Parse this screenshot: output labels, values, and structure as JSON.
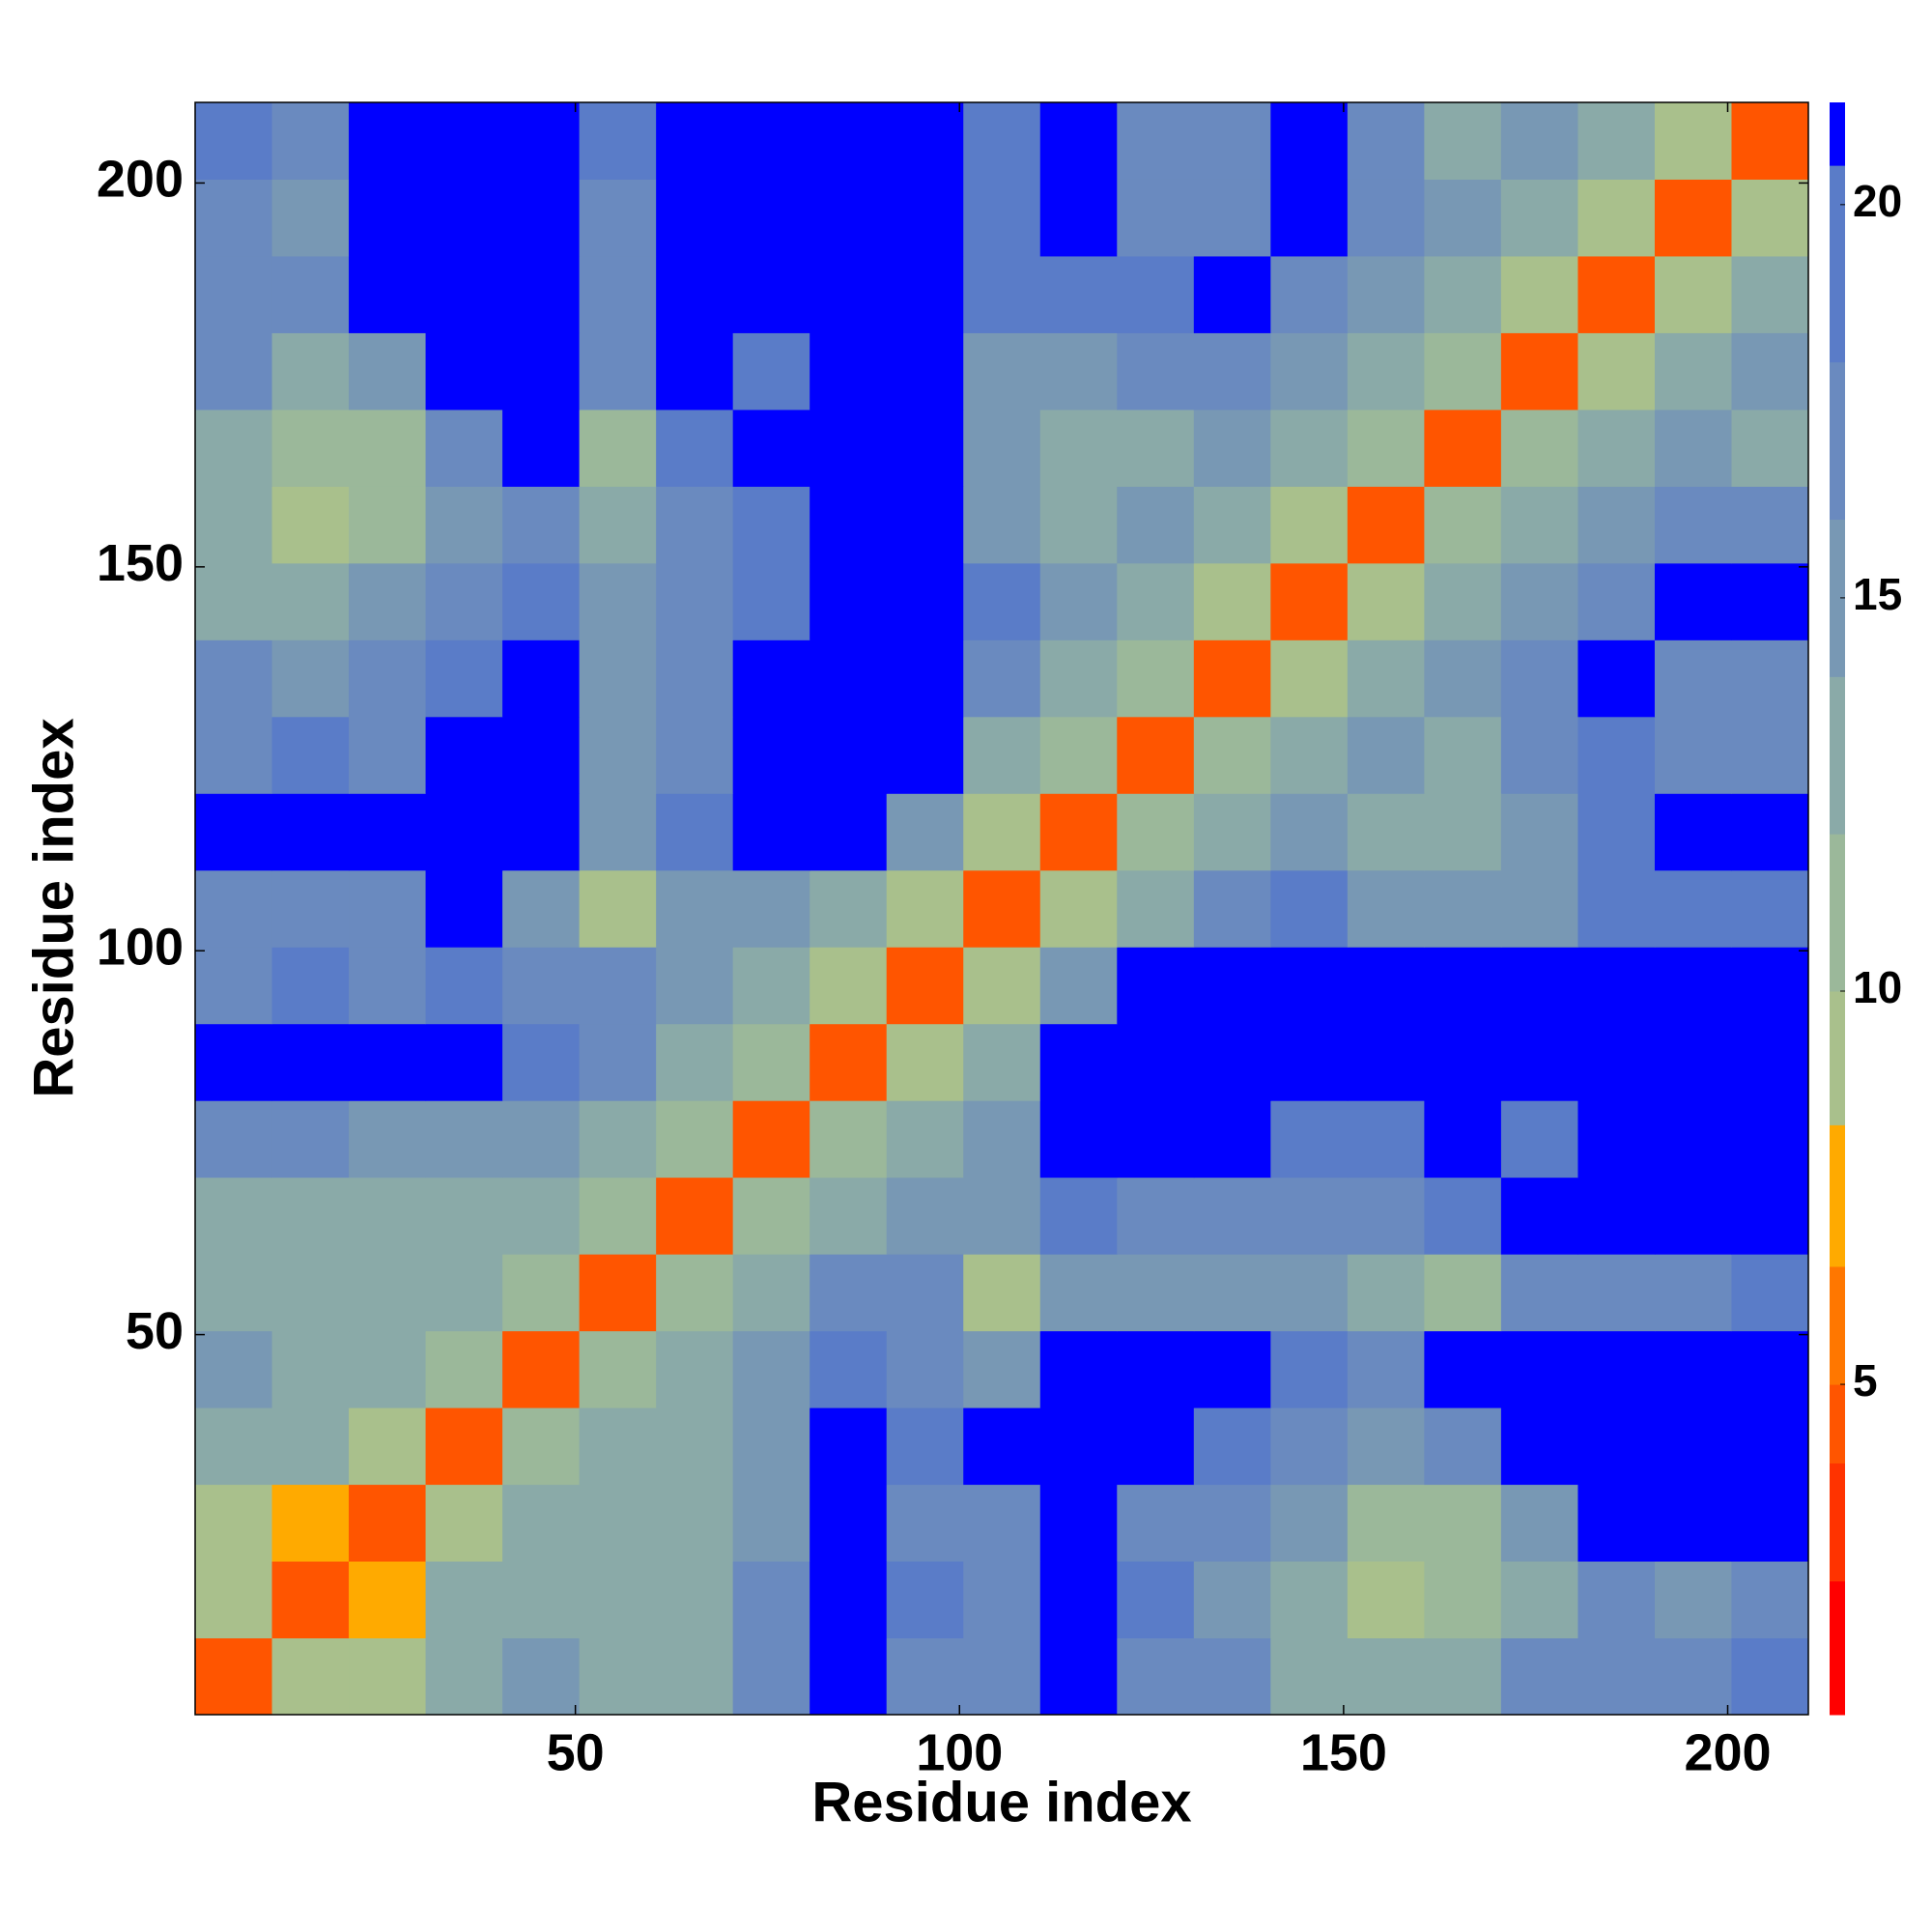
{
  "chart_data": {
    "type": "heatmap",
    "xlabel": "Residue index",
    "ylabel": "Residue index",
    "xlim": [
      0.5,
      210.5
    ],
    "ylim": [
      0.5,
      210.5
    ],
    "xticks": [
      50,
      100,
      150,
      200
    ],
    "yticks": [
      50,
      100,
      150,
      200
    ],
    "x": [
      5.5,
      15.5,
      25.5,
      35.5,
      45.5,
      55.5,
      65.5,
      75.5,
      85.5,
      95.5,
      105.5,
      115.5,
      125.5,
      135.5,
      145.5,
      155.5,
      165.5,
      175.5,
      185.5,
      195.5,
      205.5
    ],
    "y": [
      5.5,
      15.5,
      25.5,
      35.5,
      45.5,
      55.5,
      65.5,
      75.5,
      85.5,
      95.5,
      105.5,
      115.5,
      125.5,
      135.5,
      145.5,
      155.5,
      165.5,
      175.5,
      185.5,
      195.5,
      205.5
    ],
    "z": [
      [
        5,
        10,
        9,
        14,
        15,
        14,
        14,
        18,
        21,
        17,
        17,
        21,
        18,
        17,
        14,
        13,
        14,
        18,
        17,
        17,
        19
      ],
      [
        10,
        5,
        8,
        13,
        14,
        13,
        13,
        17,
        21,
        19,
        18,
        21,
        19,
        16,
        13,
        10,
        11,
        14,
        17,
        16,
        17
      ],
      [
        9,
        8,
        5,
        10,
        13,
        14,
        13,
        16,
        21,
        18,
        18,
        21,
        18,
        17,
        15,
        11,
        12,
        16,
        21,
        21,
        21
      ],
      [
        14,
        13,
        10,
        5,
        11,
        14,
        13,
        15,
        21,
        20,
        21,
        21,
        21,
        19,
        17,
        16,
        17,
        21,
        21,
        21,
        21
      ],
      [
        15,
        14,
        13,
        11,
        5,
        11,
        13,
        16,
        19,
        18,
        16,
        21,
        21,
        21,
        19,
        18,
        21,
        21,
        21,
        21,
        21
      ],
      [
        14,
        13,
        14,
        14,
        11,
        5,
        11,
        14,
        17,
        17,
        10,
        15,
        16,
        16,
        15,
        14,
        12,
        17,
        18,
        18,
        19
      ],
      [
        14,
        13,
        13,
        13,
        13,
        11,
        5,
        11,
        14,
        15,
        15,
        19,
        18,
        17,
        17,
        18,
        19,
        21,
        21,
        21,
        21
      ],
      [
        18,
        17,
        16,
        15,
        16,
        14,
        11,
        5,
        11,
        13,
        16,
        21,
        21,
        21,
        20,
        19,
        21,
        19,
        21,
        21,
        21
      ],
      [
        21,
        21,
        21,
        21,
        19,
        17,
        14,
        11,
        5,
        10,
        14,
        21,
        21,
        21,
        21,
        21,
        21,
        21,
        21,
        21,
        21
      ],
      [
        17,
        19,
        18,
        20,
        18,
        17,
        15,
        13,
        10,
        5,
        10,
        16,
        21,
        21,
        21,
        21,
        21,
        21,
        21,
        21,
        21
      ],
      [
        17,
        18,
        18,
        21,
        16,
        10,
        15,
        16,
        14,
        10,
        5,
        10,
        14,
        17,
        19,
        16,
        15,
        16,
        19,
        20,
        20
      ],
      [
        21,
        21,
        21,
        21,
        21,
        15,
        19,
        21,
        21,
        16,
        10,
        5,
        11,
        14,
        16,
        14,
        13,
        15,
        20,
        21,
        21
      ],
      [
        18,
        19,
        18,
        21,
        21,
        16,
        18,
        21,
        21,
        21,
        14,
        11,
        5,
        11,
        13,
        15,
        14,
        17,
        19,
        17,
        17
      ],
      [
        17,
        16,
        17,
        19,
        21,
        16,
        17,
        21,
        21,
        21,
        17,
        14,
        11,
        5,
        10,
        13,
        15,
        17,
        21,
        18,
        18
      ],
      [
        14,
        13,
        15,
        17,
        19,
        15,
        17,
        20,
        21,
        21,
        19,
        16,
        13,
        10,
        5,
        10,
        13,
        16,
        18,
        21,
        21
      ],
      [
        13,
        10,
        11,
        16,
        18,
        14,
        18,
        19,
        21,
        21,
        16,
        14,
        15,
        13,
        10,
        5,
        11,
        14,
        16,
        17,
        17
      ],
      [
        14,
        11,
        12,
        17,
        21,
        12,
        19,
        21,
        21,
        21,
        15,
        13,
        14,
        15,
        13,
        11,
        5,
        11,
        13,
        15,
        14
      ],
      [
        18,
        14,
        16,
        21,
        21,
        17,
        21,
        19,
        21,
        21,
        16,
        15,
        17,
        17,
        16,
        14,
        11,
        5,
        10,
        13,
        15
      ],
      [
        17,
        17,
        21,
        21,
        21,
        18,
        21,
        21,
        21,
        21,
        19,
        20,
        19,
        21,
        18,
        16,
        13,
        10,
        5,
        10,
        13
      ],
      [
        17,
        16,
        21,
        21,
        21,
        18,
        21,
        21,
        21,
        21,
        20,
        21,
        17,
        18,
        21,
        17,
        15,
        13,
        10,
        5,
        10
      ],
      [
        19,
        17,
        21,
        21,
        21,
        19,
        21,
        21,
        21,
        21,
        20,
        21,
        17,
        18,
        21,
        17,
        14,
        15,
        13,
        10,
        5
      ]
    ],
    "clim": [
      0.8,
      21.3
    ],
    "cticks": [
      5,
      10,
      15,
      20
    ],
    "levels": [
      0.8,
      2.5,
      4,
      5,
      6.5,
      8.3,
      10,
      12,
      14,
      16,
      18,
      20.5,
      21.3
    ],
    "colors": [
      "#ff0000",
      "#ff3300",
      "#ff5500",
      "#ff7700",
      "#ffaa00",
      "#a9c08c",
      "#9bb89a",
      "#8aaaa8",
      "#7898b4",
      "#6a8abf",
      "#5a7cc8",
      "#0000ff"
    ]
  }
}
